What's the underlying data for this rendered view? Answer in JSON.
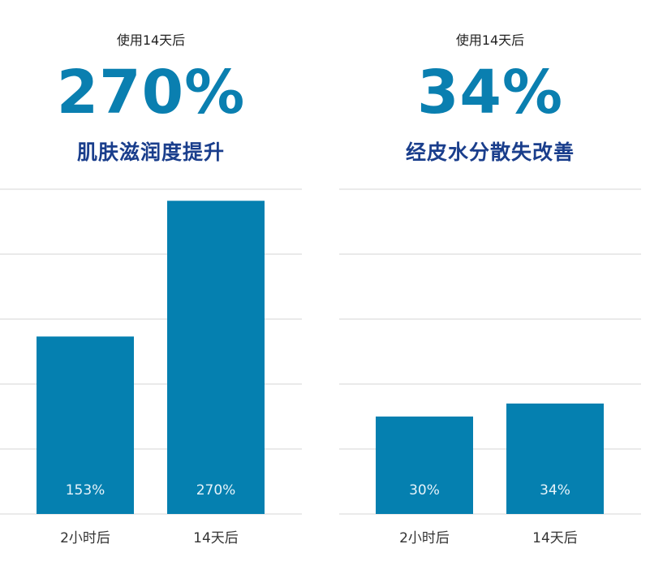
{
  "charts": [
    {
      "subtitle": "使用14天后",
      "big_stat": "270%",
      "description": "肌肤滋润度提升"
    },
    {
      "subtitle": "使用14天后",
      "big_stat": "34%",
      "description": "经皮水分散失改善"
    }
  ],
  "chart_data": [
    {
      "type": "bar",
      "title": "肌肤滋润度提升",
      "categories": [
        "2小时后",
        "14天后"
      ],
      "values": [
        153,
        270
      ],
      "value_labels": [
        "153%",
        "270%"
      ],
      "ylim": [
        0,
        280
      ],
      "grid": true,
      "bar_color": "#0580b0"
    },
    {
      "type": "bar",
      "title": "经皮水分散失改善",
      "categories": [
        "2小时后",
        "14天后"
      ],
      "values": [
        30,
        34
      ],
      "value_labels": [
        "30%",
        "34%"
      ],
      "ylim": [
        0,
        100
      ],
      "grid": true,
      "bar_color": "#0580b0"
    }
  ]
}
